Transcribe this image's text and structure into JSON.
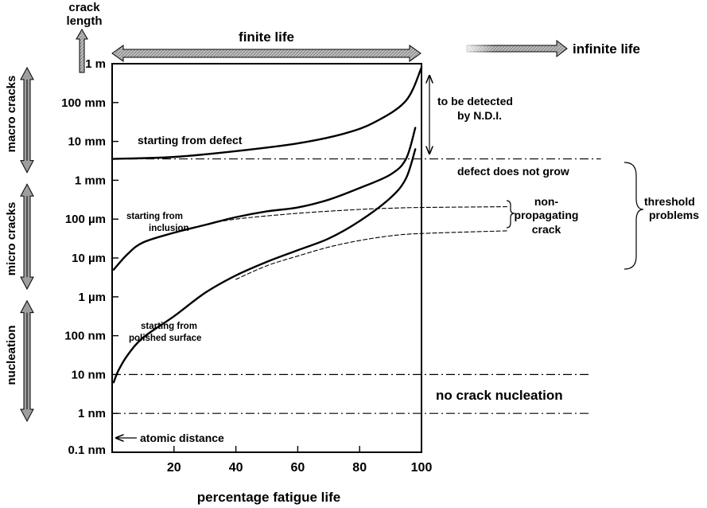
{
  "chart_data": {
    "type": "line",
    "crack_length_label": [
      "crack",
      "length"
    ],
    "xlabel": "percentage fatigue life",
    "x_ticks": [
      "20",
      "40",
      "60",
      "80",
      "100"
    ],
    "y_ticks": [
      "1 m",
      "100 mm",
      "10 mm",
      "1 mm",
      "100 µm",
      "10 µm",
      "1 µm",
      "100 nm",
      "10 nm",
      "1 nm",
      "0.1 nm"
    ],
    "bands": [
      "macro cracks",
      "micro cracks",
      "nucleation"
    ],
    "finite_life_label": "finite life",
    "infinite_life_label": "infinite life",
    "labels": {
      "from_defect": "starting from defect",
      "from_inclusion": [
        "starting from",
        "inclusion"
      ],
      "from_polished": [
        "starting from",
        "polished surface"
      ],
      "detected": [
        "to be detected",
        "by N.D.I."
      ],
      "defect_no_grow": "defect does not grow",
      "non_propagating": [
        "non-",
        "propagating",
        "crack"
      ],
      "threshold": [
        "threshold",
        "problems"
      ],
      "no_nucleation": "no crack nucleation",
      "atomic": "atomic distance"
    },
    "series": [
      {
        "x": [
          0,
          20,
          40,
          60,
          75,
          85,
          95,
          100
        ],
        "y": [
          -2.45,
          -2.4,
          -2.25,
          -2.05,
          -1.8,
          -1.5,
          -0.95,
          -0.1
        ]
      },
      {
        "x": [
          0.5,
          5,
          10,
          20,
          30,
          40,
          50,
          60,
          70,
          80,
          90,
          95,
          98
        ],
        "y": [
          -5.3,
          -4.9,
          -4.6,
          -4.35,
          -4.15,
          -3.95,
          -3.8,
          -3.7,
          -3.5,
          -3.2,
          -2.85,
          -2.45,
          -1.65
        ]
      },
      {
        "x": [
          0.5,
          2,
          5,
          10,
          20,
          30,
          40,
          50,
          60,
          70,
          80,
          90,
          95,
          98
        ],
        "y": [
          -8.2,
          -7.9,
          -7.5,
          -7.05,
          -6.5,
          -5.9,
          -5.45,
          -5.1,
          -4.8,
          -4.5,
          -4.05,
          -3.45,
          -2.95,
          -2.2
        ]
      },
      {
        "x": [
          20,
          30,
          40,
          60,
          80,
          90,
          100,
          128
        ],
        "y": [
          -4.35,
          -4.15,
          -4.0,
          -3.85,
          -3.75,
          -3.72,
          -3.7,
          -3.68
        ]
      },
      {
        "x": [
          40,
          50,
          60,
          70,
          80,
          90,
          100,
          128
        ],
        "y": [
          -5.55,
          -5.2,
          -4.95,
          -4.72,
          -4.55,
          -4.43,
          -4.37,
          -4.3
        ]
      }
    ],
    "reference_lines": [
      {
        "y": -2.45,
        "x": [
          0,
          158
        ]
      },
      {
        "y": -8.0,
        "x": [
          0,
          155
        ]
      },
      {
        "y": -9.0,
        "x": [
          0,
          155
        ]
      }
    ],
    "xlim": [
      0,
      100
    ],
    "ylim": [
      -10,
      0
    ],
    "y_scale": "log",
    "grid": false,
    "colors": {
      "line": "#000000",
      "band_arrow": "#9e9e9e",
      "header_arrow": "#a8a8a8"
    }
  }
}
